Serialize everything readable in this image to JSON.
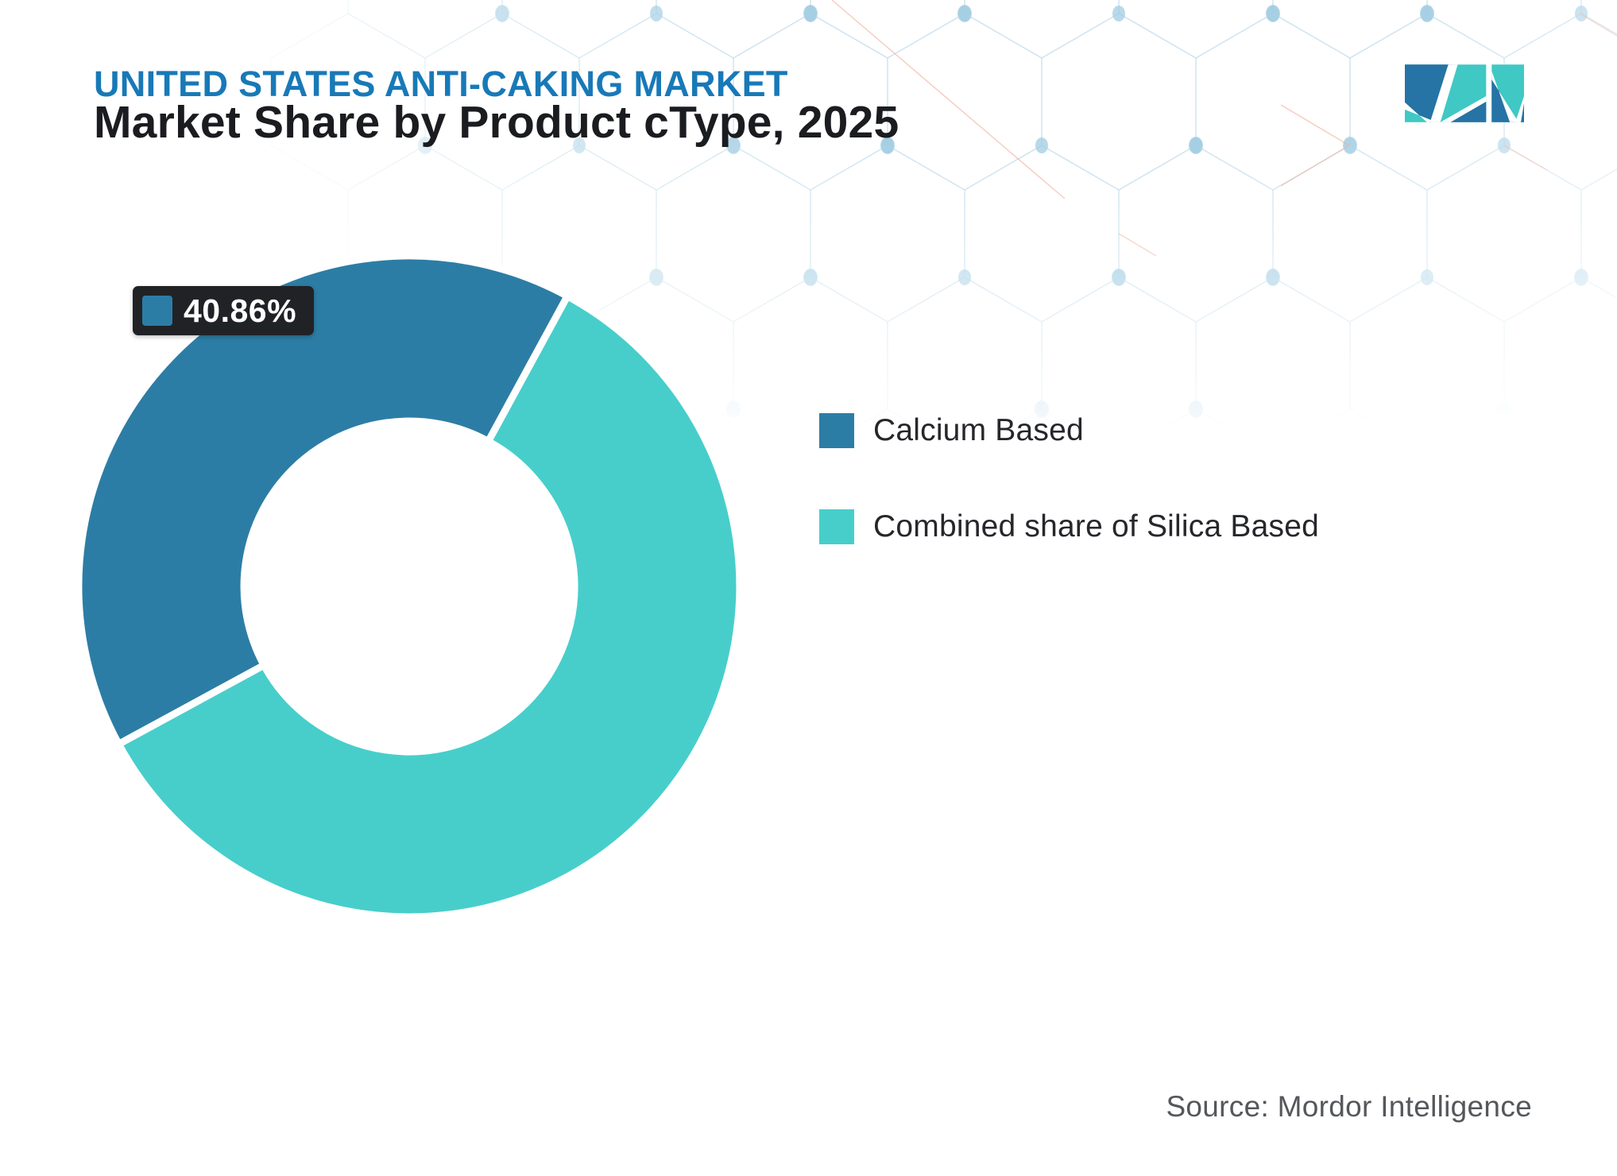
{
  "header": {
    "title": "UNITED STATES ANTI-CAKING MARKET",
    "subtitle": "Market Share by Product cType, 2025"
  },
  "chart_data": {
    "type": "pie",
    "donut": true,
    "title": "Market Share by Product cType, 2025",
    "categories": [
      "Calcium Based",
      "Combined share of Silica Based"
    ],
    "values": [
      40.86,
      59.14
    ],
    "colors": [
      "#2C7DA5",
      "#47CECB"
    ],
    "start_angle_deg": 241.5,
    "inner_radius_ratio": 0.5,
    "legend_position": "right",
    "data_label": {
      "series": "Calcium Based",
      "text": "40.86%"
    }
  },
  "callout": {
    "value": "40.86%"
  },
  "legend": {
    "items": [
      {
        "label": "Calcium Based",
        "color": "#2C7DA5"
      },
      {
        "label": "Combined share of Silica Based",
        "color": "#47CECB"
      }
    ]
  },
  "footer": {
    "source": "Source: Mordor Intelligence"
  },
  "logo": {
    "name": "mordor-intelligence-logo"
  },
  "colors": {
    "title_blue": "#1879B8",
    "subtitle_dark": "#1B1C20",
    "slice_blue": "#2C7DA5",
    "slice_teal": "#47CECB",
    "callout_bg": "#212226",
    "source_gray": "#54575B",
    "logo_blue": "#2673A5",
    "logo_teal": "#40C8C4",
    "pattern_line": "#BCD9EA",
    "pattern_dot": "#9CC9E2",
    "pattern_red": "#EFA18C"
  }
}
